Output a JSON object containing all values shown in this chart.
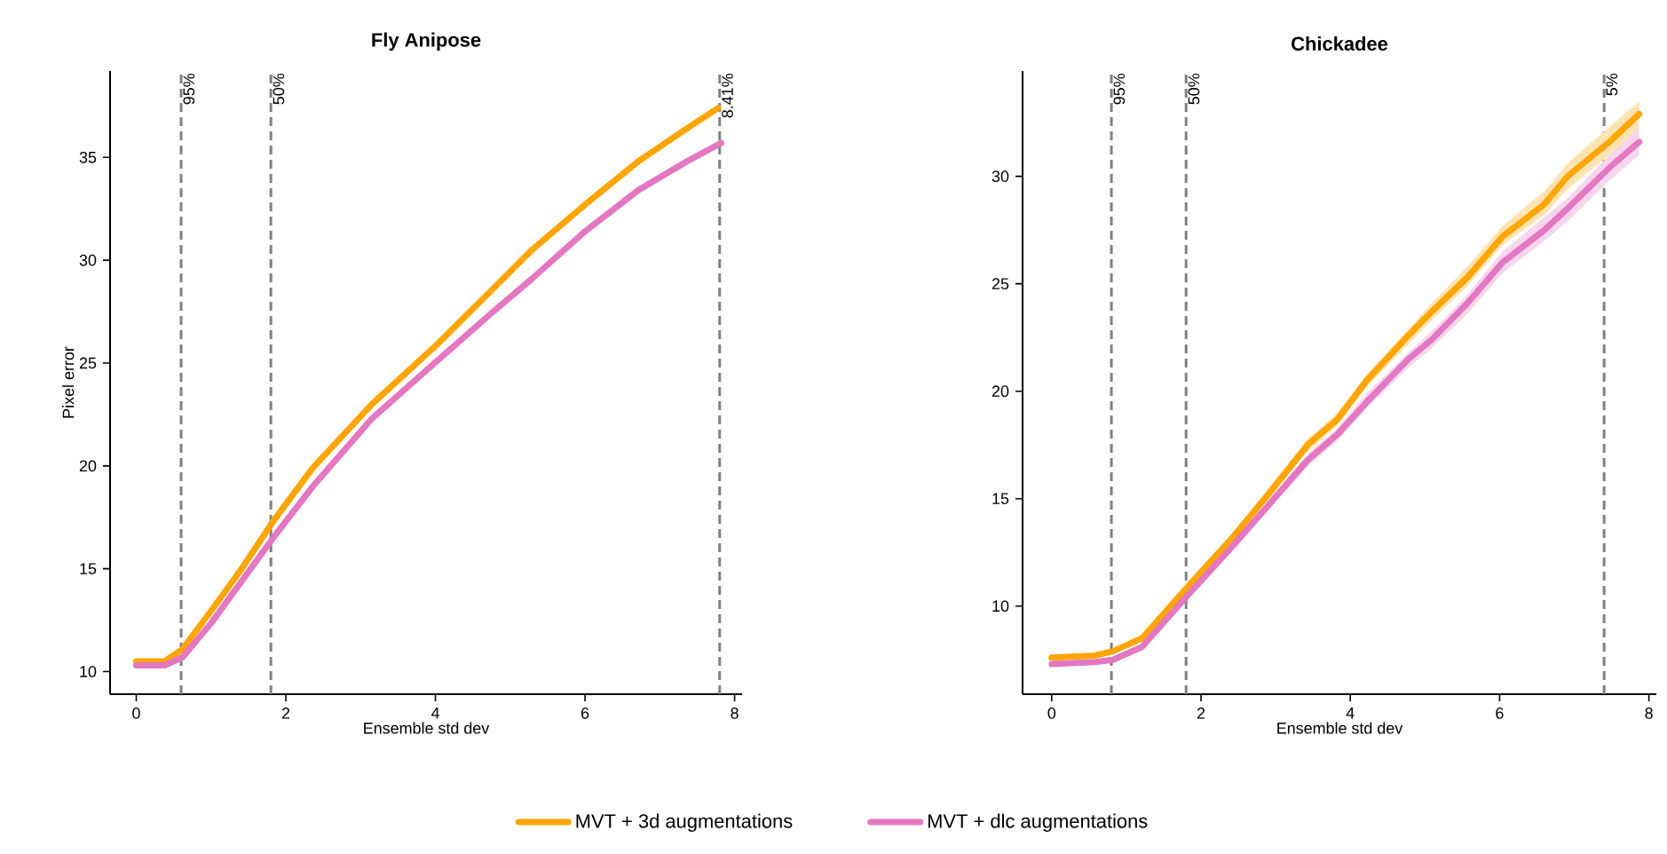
{
  "chart_data": [
    {
      "type": "line",
      "title": "Fly Anipose",
      "xlabel": "Ensemble std dev",
      "ylabel": "Pixel error",
      "xlim": [
        -0.35,
        8.1
      ],
      "ylim": [
        8.9,
        39.2
      ],
      "xticks": [
        0,
        2,
        4,
        6,
        8
      ],
      "yticks": [
        10,
        15,
        20,
        25,
        30,
        35
      ],
      "grid": false,
      "legend": "bottom",
      "line_style": "solid",
      "series": [
        {
          "name": "MVT + 3d augmentations",
          "color": "#ffa500",
          "x": [
            0,
            0.38,
            0.62,
            1.01,
            1.41,
            1.81,
            2.36,
            3.15,
            4.02,
            4.74,
            5.29,
            6.0,
            6.71,
            7.36,
            7.78
          ],
          "values": [
            10.5,
            10.5,
            11.1,
            13.0,
            15.0,
            17.2,
            19.9,
            23.0,
            25.9,
            28.5,
            30.5,
            32.7,
            34.8,
            36.4,
            37.4
          ]
        },
        {
          "name": "MVT + dlc augmentations",
          "color": "#e377c2",
          "x": [
            0,
            0.38,
            0.62,
            1.01,
            1.41,
            1.81,
            2.36,
            3.15,
            4.02,
            4.74,
            5.29,
            6.0,
            6.71,
            7.36,
            7.82
          ],
          "values": [
            10.3,
            10.3,
            10.7,
            12.4,
            14.4,
            16.4,
            19.0,
            22.3,
            25.1,
            27.4,
            29.1,
            31.4,
            33.4,
            34.8,
            35.7
          ]
        }
      ],
      "ref_lines": [
        {
          "axis": "x",
          "value": 0.6,
          "color": "#808080",
          "line_style": "dashed"
        },
        {
          "axis": "x",
          "value": 1.8,
          "color": "#808080",
          "line_style": "dashed"
        },
        {
          "axis": "x",
          "value": 7.8,
          "color": "#808080",
          "line_style": "dashed"
        }
      ],
      "annotations": [
        {
          "text": "95%",
          "x": 0.6,
          "y": 39.2
        },
        {
          "text": "50%",
          "x": 1.8,
          "y": 39.2
        },
        {
          "text": "8.41%",
          "x": 7.8,
          "y": 39.2
        }
      ]
    },
    {
      "type": "line",
      "title": "Chickadee",
      "xlabel": "Ensemble std dev",
      "xlim": [
        -0.39,
        8.1
      ],
      "ylim": [
        5.9,
        34.9
      ],
      "xticks": [
        0,
        2,
        4,
        6,
        8
      ],
      "yticks": [
        10,
        15,
        20,
        25,
        30
      ],
      "grid": false,
      "line_style": "solid",
      "series": [
        {
          "color": "#ffa500",
          "x": [
            0,
            0.58,
            0.82,
            1.21,
            1.82,
            2.4,
            2.88,
            3.43,
            3.83,
            4.22,
            4.78,
            5.09,
            5.57,
            6.04,
            6.6,
            6.91,
            7.47,
            7.87
          ],
          "values": [
            7.6,
            7.7,
            7.9,
            8.5,
            10.9,
            13.1,
            15.1,
            17.5,
            18.7,
            20.5,
            22.6,
            23.7,
            25.3,
            27.2,
            28.7,
            30.0,
            31.6,
            32.9
          ],
          "lower": [
            7.5,
            7.6,
            7.8,
            8.4,
            10.7,
            12.9,
            14.9,
            17.2,
            18.4,
            20.2,
            22.2,
            23.3,
            24.9,
            26.8,
            28.2,
            29.4,
            31.0,
            32.2
          ],
          "upper": [
            7.7,
            7.8,
            8.0,
            8.6,
            11.1,
            13.3,
            15.4,
            17.8,
            19.0,
            20.8,
            22.9,
            24.1,
            25.8,
            27.7,
            29.3,
            30.6,
            32.3,
            33.5
          ]
        },
        {
          "color": "#e377c2",
          "x": [
            0,
            0.58,
            0.82,
            1.21,
            1.82,
            2.4,
            2.88,
            3.43,
            3.83,
            4.22,
            4.78,
            5.09,
            5.57,
            6.04,
            6.6,
            6.91,
            7.47,
            7.87
          ],
          "values": [
            7.3,
            7.4,
            7.5,
            8.1,
            10.5,
            12.7,
            14.6,
            16.8,
            18.0,
            19.5,
            21.5,
            22.4,
            24.1,
            26.0,
            27.5,
            28.5,
            30.4,
            31.6
          ],
          "lower": [
            7.2,
            7.3,
            7.4,
            8.0,
            10.3,
            12.5,
            14.4,
            16.5,
            17.7,
            19.2,
            21.1,
            22.0,
            23.6,
            25.5,
            27.0,
            27.9,
            29.8,
            31.0
          ],
          "upper": [
            7.4,
            7.5,
            7.6,
            8.2,
            10.7,
            12.9,
            14.8,
            17.1,
            18.3,
            19.9,
            21.8,
            22.8,
            24.5,
            26.5,
            28.1,
            29.0,
            31.0,
            32.3
          ]
        }
      ],
      "ref_lines": [
        {
          "axis": "x",
          "value": 0.8,
          "color": "#808080",
          "line_style": "dashed"
        },
        {
          "axis": "x",
          "value": 1.8,
          "color": "#808080",
          "line_style": "dashed"
        },
        {
          "axis": "x",
          "value": 7.4,
          "color": "#808080",
          "line_style": "dashed"
        }
      ],
      "annotations": [
        {
          "text": "95%",
          "x": 0.8,
          "y": 34.9
        },
        {
          "text": "50%",
          "x": 1.8,
          "y": 34.9
        },
        {
          "text": "5%",
          "x": 7.4,
          "y": 34.9
        }
      ]
    }
  ]
}
